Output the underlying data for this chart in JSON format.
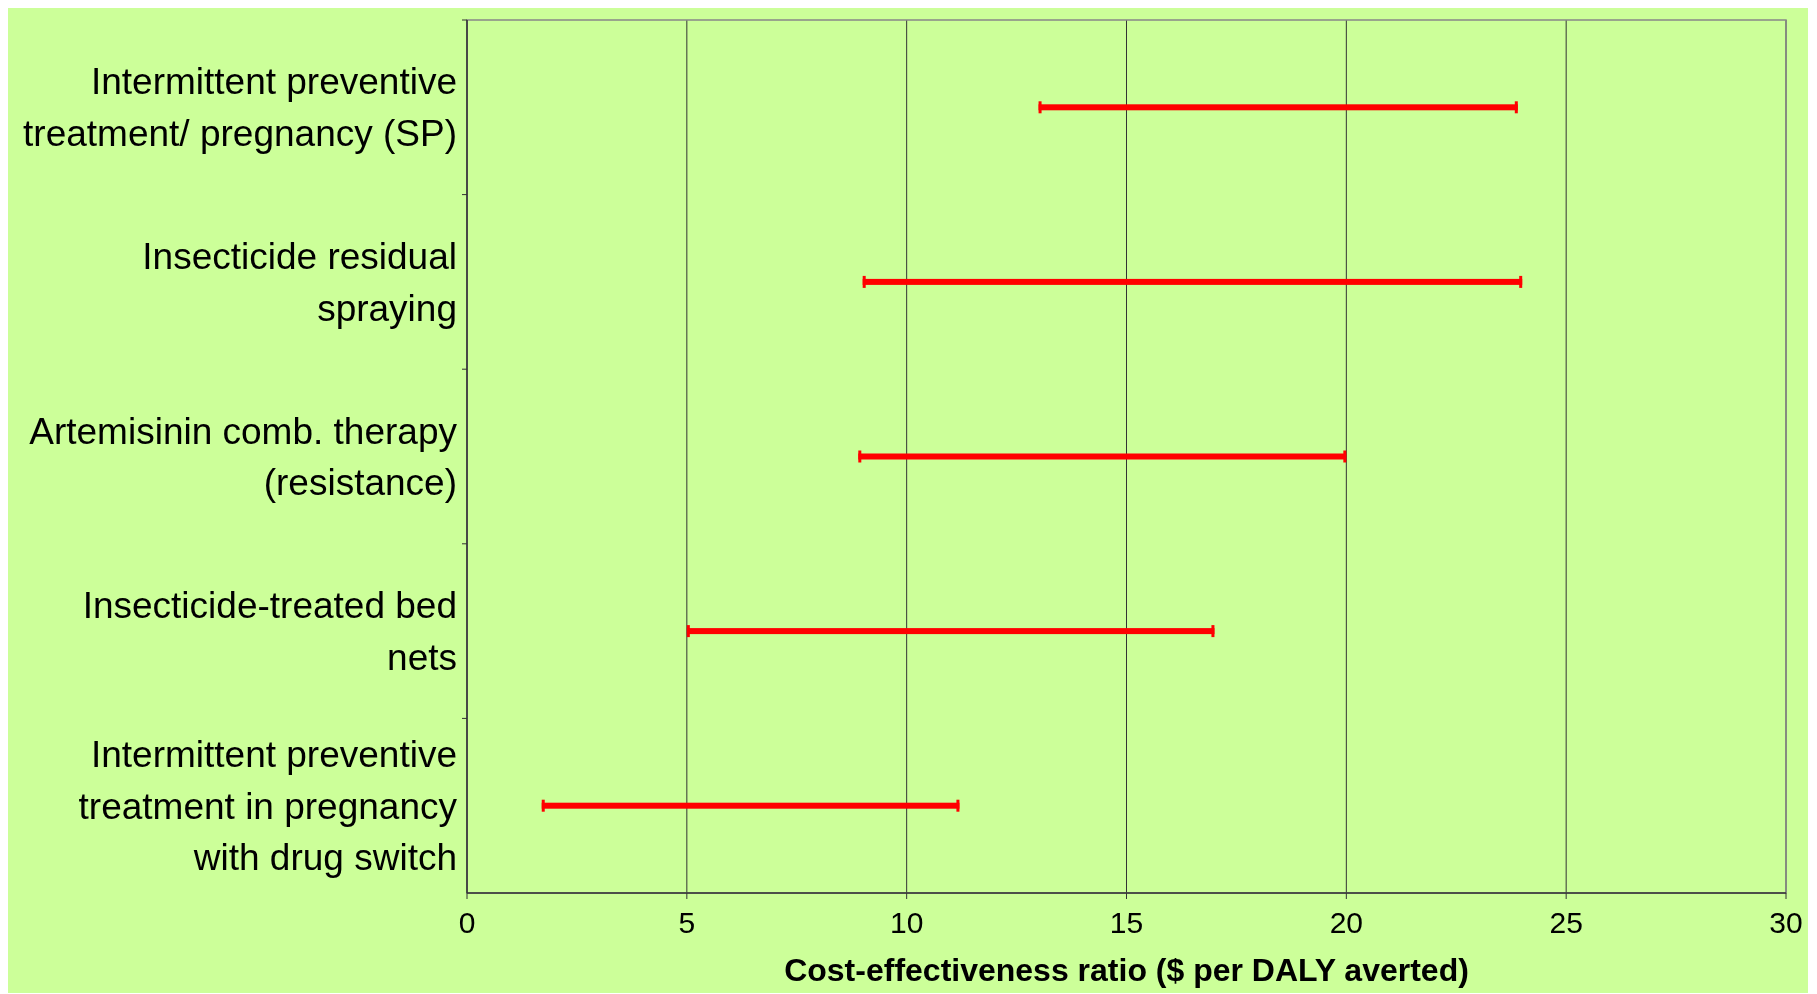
{
  "chart_data": {
    "type": "bar",
    "orientation": "horizontal",
    "xlabel": "Cost-effectiveness ratio ($ per DALY averted)",
    "categories": [
      "Intermittent preventive treatment/ pregnancy (SP)",
      "Insecticide residual spraying",
      "Artemisinin comb. therapy (resistance)",
      "Insecticide-treated bed nets",
      "Intermittent preventive treatment in pregnancy with drug switch"
    ],
    "base": [
      13,
      9,
      8.9,
      5,
      1.7
    ],
    "values": [
      10.9,
      15,
      11.1,
      12,
      9.5
    ],
    "color": "#ff0000",
    "xlim": [
      0,
      30
    ],
    "xticks": [
      0,
      5,
      10,
      15,
      20,
      25,
      30
    ],
    "grid": "x"
  }
}
